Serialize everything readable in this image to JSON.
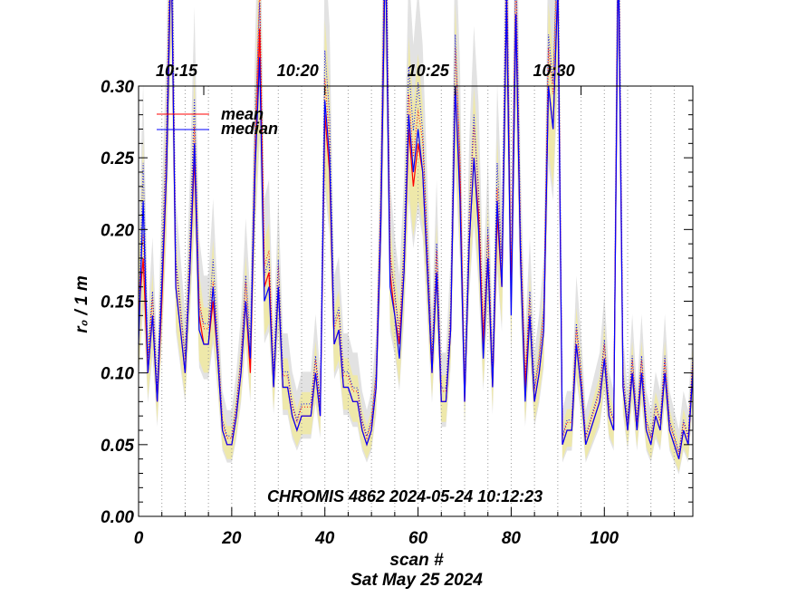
{
  "chart_data": {
    "type": "line",
    "xlabel": "scan #",
    "ylabel": "r₀ / 1 m",
    "date": "Sat May 25 2024",
    "annotation": "CHROMIS 4862 2024-05-24 10:12:23",
    "xlim": [
      0,
      119
    ],
    "ylim": [
      0,
      0.3
    ],
    "x_ticks": [
      "0",
      "20",
      "40",
      "60",
      "80",
      "100"
    ],
    "y_ticks": [
      "0.00",
      "0.05",
      "0.10",
      "0.15",
      "0.20",
      "0.25",
      "0.30"
    ],
    "time_ticks": [
      {
        "scan": 14,
        "label": "10:15"
      },
      {
        "scan": 40,
        "label": "10:20"
      },
      {
        "scan": 68,
        "label": "10:25"
      },
      {
        "scan": 95,
        "label": "10:30"
      }
    ],
    "legend": {
      "position": "top-left"
    },
    "colors": {
      "mean": "#ff0000",
      "median": "#0000ff",
      "band_inner": "#eee8aa",
      "band_outer": "#e2e2e2",
      "grid": "#999999"
    },
    "series": [
      {
        "name": "mean",
        "color": "#ff0000",
        "values": [
          0.14,
          0.18,
          0.1,
          0.14,
          0.08,
          0.15,
          0.24,
          0.4,
          0.16,
          0.13,
          0.1,
          0.17,
          0.25,
          0.14,
          0.12,
          0.12,
          0.15,
          0.11,
          0.06,
          0.05,
          0.05,
          0.07,
          0.1,
          0.15,
          0.1,
          0.24,
          0.34,
          0.16,
          0.17,
          0.09,
          0.16,
          0.09,
          0.09,
          0.07,
          0.06,
          0.07,
          0.07,
          0.07,
          0.1,
          0.07,
          0.28,
          0.24,
          0.12,
          0.13,
          0.09,
          0.09,
          0.08,
          0.08,
          0.06,
          0.05,
          0.06,
          0.09,
          0.2,
          0.4,
          0.17,
          0.14,
          0.12,
          0.17,
          0.27,
          0.23,
          0.26,
          0.24,
          0.17,
          0.1,
          0.17,
          0.08,
          0.08,
          0.13,
          0.3,
          0.23,
          0.08,
          0.19,
          0.25,
          0.21,
          0.12,
          0.18,
          0.09,
          0.21,
          0.16,
          0.36,
          0.15,
          0.35,
          0.18,
          0.09,
          0.14,
          0.08,
          0.1,
          0.13,
          0.3,
          0.27,
          0.37,
          0.05,
          0.06,
          0.06,
          0.12,
          0.09,
          0.05,
          0.06,
          0.07,
          0.08,
          0.11,
          0.07,
          0.06,
          0.4,
          0.09,
          0.06,
          0.1,
          0.06,
          0.1,
          0.06,
          0.05,
          0.07,
          0.06,
          0.1,
          0.06,
          0.05,
          0.04,
          0.06,
          0.05,
          0.1
        ]
      },
      {
        "name": "median",
        "color": "#0000ff",
        "values": [
          0.12,
          0.22,
          0.1,
          0.14,
          0.08,
          0.16,
          0.24,
          0.4,
          0.16,
          0.13,
          0.1,
          0.17,
          0.26,
          0.13,
          0.12,
          0.12,
          0.16,
          0.11,
          0.06,
          0.05,
          0.05,
          0.07,
          0.1,
          0.15,
          0.11,
          0.24,
          0.32,
          0.15,
          0.16,
          0.09,
          0.16,
          0.09,
          0.09,
          0.07,
          0.06,
          0.07,
          0.07,
          0.07,
          0.1,
          0.07,
          0.29,
          0.25,
          0.12,
          0.13,
          0.09,
          0.09,
          0.08,
          0.08,
          0.06,
          0.05,
          0.06,
          0.09,
          0.2,
          0.4,
          0.16,
          0.14,
          0.11,
          0.17,
          0.28,
          0.24,
          0.27,
          0.24,
          0.17,
          0.1,
          0.17,
          0.08,
          0.08,
          0.13,
          0.3,
          0.22,
          0.08,
          0.19,
          0.25,
          0.2,
          0.11,
          0.18,
          0.09,
          0.22,
          0.16,
          0.36,
          0.14,
          0.35,
          0.18,
          0.08,
          0.14,
          0.08,
          0.1,
          0.13,
          0.3,
          0.27,
          0.37,
          0.05,
          0.06,
          0.06,
          0.12,
          0.09,
          0.05,
          0.06,
          0.07,
          0.08,
          0.11,
          0.07,
          0.06,
          0.4,
          0.09,
          0.06,
          0.1,
          0.06,
          0.1,
          0.06,
          0.05,
          0.07,
          0.06,
          0.1,
          0.06,
          0.05,
          0.04,
          0.06,
          0.05,
          0.1
        ]
      }
    ]
  }
}
